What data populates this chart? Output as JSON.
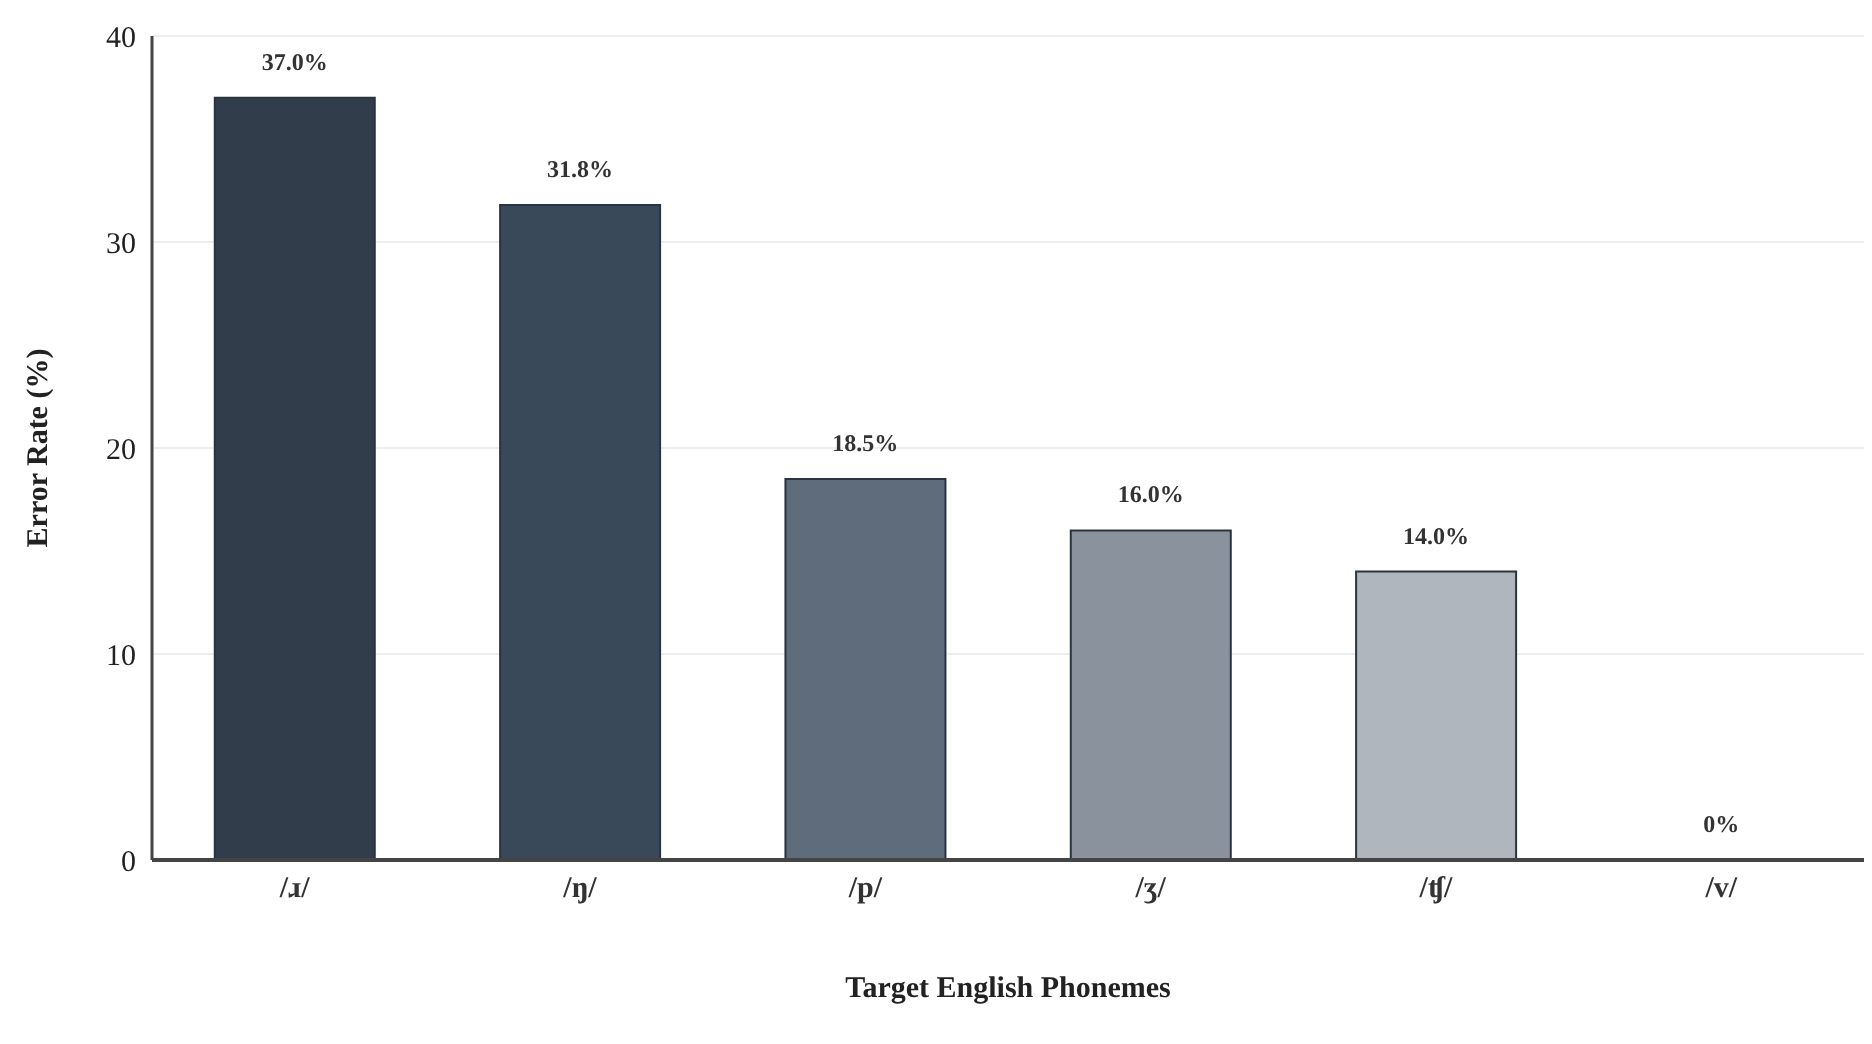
{
  "chart_data": {
    "type": "bar",
    "xlabel": "Target English Phonemes",
    "ylabel": "Error Rate (%)",
    "categories": [
      "/ɹ/",
      "/ŋ/",
      "/p/",
      "/ʒ/",
      "/ʧ/",
      "/v/"
    ],
    "values": [
      37.0,
      31.8,
      18.5,
      16.0,
      14.0,
      0
    ],
    "colors": [
      "#323d4c",
      "#3a495a",
      "#5f6c7b",
      "#8a939d",
      "#b0b6bd",
      "#d5dadd"
    ],
    "value_labels": [
      "37.0%",
      "31.8%",
      "18.5%",
      "16.0%",
      "14.0%",
      "0%"
    ],
    "ylim": [
      0,
      40
    ],
    "yticks": [
      0,
      10,
      20,
      30,
      40
    ],
    "grid": "y"
  }
}
